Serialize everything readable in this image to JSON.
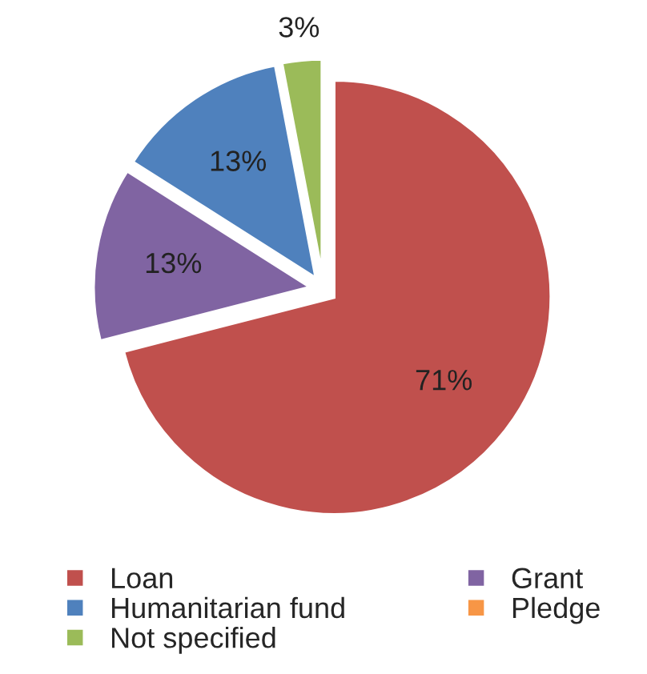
{
  "chart_data": {
    "type": "pie",
    "categories": [
      "Loan",
      "Grant",
      "Humanitarian fund",
      "Pledge",
      "Not specified"
    ],
    "values": [
      71,
      13,
      13,
      0,
      3
    ],
    "colors": [
      "#c0504d",
      "#8064a2",
      "#4f81bd",
      "#f79646",
      "#9bbb59"
    ],
    "value_labels": [
      "71%",
      "13%",
      "13%",
      null,
      "3%"
    ],
    "legend": "bottom"
  }
}
